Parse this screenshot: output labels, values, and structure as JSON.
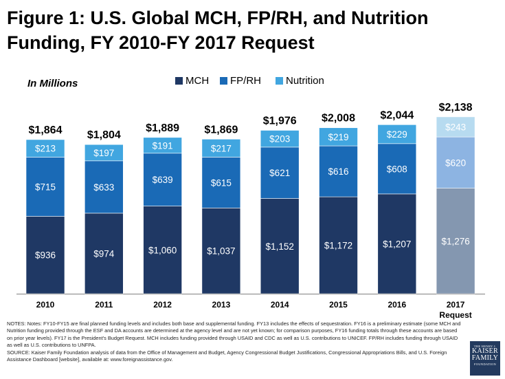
{
  "title": "Figure 1: U.S. Global MCH, FP/RH, and Nutrition Funding, FY 2010-FY 2017 Request",
  "chart_data": {
    "type": "bar",
    "stacked": true,
    "units_label": "In Millions",
    "categories": [
      "2010",
      "2011",
      "2012",
      "2013",
      "2014",
      "2015",
      "2016",
      "2017"
    ],
    "category_sublabels": [
      "",
      "",
      "",
      "",
      "",
      "",
      "",
      "Request"
    ],
    "series": [
      {
        "name": "MCH",
        "color": "#1f3864",
        "request_color": "#8497b0",
        "values": [
          936,
          974,
          1060,
          1037,
          1152,
          1172,
          1207,
          1276
        ],
        "labels": [
          "$936",
          "$974",
          "$1,060",
          "$1,037",
          "$1,152",
          "$1,172",
          "$1,207",
          "$1,276"
        ]
      },
      {
        "name": "FP/RH",
        "color": "#1a6ab6",
        "request_color": "#8db4e2",
        "values": [
          715,
          633,
          639,
          615,
          621,
          616,
          608,
          620
        ],
        "labels": [
          "$715",
          "$633",
          "$639",
          "$615",
          "$621",
          "$616",
          "$608",
          "$620"
        ]
      },
      {
        "name": "Nutrition",
        "color": "#41a6e0",
        "request_color": "#b7dbf0",
        "values": [
          213,
          197,
          191,
          217,
          203,
          219,
          229,
          243
        ],
        "labels": [
          "$213",
          "$197",
          "$191",
          "$217",
          "$203",
          "$219",
          "$229",
          "$243"
        ]
      }
    ],
    "totals": [
      1864,
      1804,
      1889,
      1869,
      1976,
      2008,
      2044,
      2138
    ],
    "total_labels": [
      "$1,864",
      "$1,804",
      "$1,889",
      "$1,869",
      "$1,976",
      "$2,008",
      "$2,044",
      "$2,138"
    ],
    "ylim": [
      0,
      2138
    ],
    "legend_position": "top-center",
    "grid": false
  },
  "notes": "NOTES: Notes: FY10-FY15 are final planned funding levels and includes both base and supplemental funding. FY13 includes the effects of sequestration. FY16 is a preliminary estimate (some MCH and Nutrition funding provided through the ESF and DA accounts are determined at the agency level and are not yet known; for comparison purposes, FY16 funding totals through these accounts are based on prior year levels). FY17 is the President's Budget Request. MCH includes funding provided through USAID and CDC as well as U.S. contributions to UNICEF. FP/RH includes funding through USAID as well as U.S. contributions to UNFPA.",
  "source": "SOURCE: Kaiser Family Foundation analysis of data from the Office of Management and Budget, Agency Congressional Budget Justifications, Congressional Appropriations Bills, and U.S. Foreign Assistance Dashboard [website], available at: www.foreignassistance.gov.",
  "logo": {
    "line1": "THE HENRY J.",
    "line2": "KAISER",
    "line3": "FAMILY",
    "line4": "FOUNDATION"
  }
}
